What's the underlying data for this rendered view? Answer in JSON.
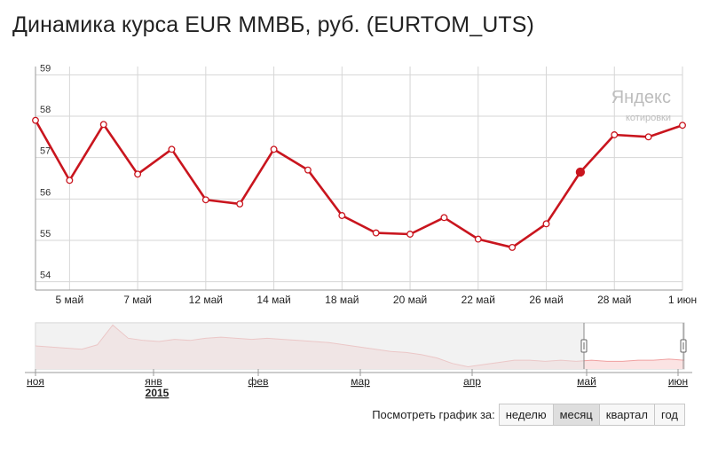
{
  "header": {
    "title": "Динамика курса EUR ММВБ, руб. (EURTOM_UTS)"
  },
  "watermark": {
    "brand": "Яндекс",
    "sub": "котировки"
  },
  "colors": {
    "line": "#c9151e",
    "grid": "#d6d6d6",
    "navigator_fill": "#fbe3e3",
    "navigator_line": "#f0a0a0",
    "navigator_shade": "#e7e7e7"
  },
  "chart_data": {
    "type": "line",
    "title": "Динамика курса EUR ММВБ, руб. (EURTOM_UTS)",
    "xlabel": "",
    "ylabel": "",
    "ylim": [
      53.8,
      59.2
    ],
    "yticks": [
      54,
      55,
      56,
      57,
      58,
      59
    ],
    "grid": true,
    "x": [
      "4 май",
      "5 май",
      "6 май",
      "7 май",
      "8 май",
      "12 май",
      "13 май",
      "14 май",
      "15 май",
      "18 май",
      "19 май",
      "20 май",
      "21 май",
      "22 май",
      "25 май",
      "26 май",
      "27 май",
      "28 май",
      "29 май",
      "1 июн"
    ],
    "values": [
      57.9,
      56.45,
      57.8,
      56.6,
      57.2,
      55.98,
      55.88,
      57.2,
      56.7,
      55.6,
      55.18,
      55.15,
      55.55,
      55.03,
      54.83,
      55.4,
      56.65,
      57.55,
      57.5,
      57.78
    ],
    "xtick_labels": [
      "5 май",
      "7 май",
      "12 май",
      "14 май",
      "18 май",
      "20 май",
      "22 май",
      "26 май",
      "28 май",
      "1 июн"
    ],
    "highlight": "27 май"
  },
  "navigator": {
    "month_labels": [
      "ноя",
      "янв",
      "фев",
      "мар",
      "апр",
      "май",
      "июн"
    ],
    "year_label": "2015",
    "values": [
      71,
      70,
      69,
      68,
      72,
      90,
      78,
      76,
      75,
      77,
      76,
      78,
      79,
      78,
      77,
      78,
      77,
      76,
      75,
      74,
      72,
      70,
      68,
      66,
      65,
      63,
      60,
      55,
      52,
      54,
      56,
      58,
      58,
      57,
      58,
      57,
      58,
      57,
      57,
      58,
      58,
      59,
      58
    ]
  },
  "period_selector": {
    "label": "Посмотреть график за:",
    "options": [
      "неделю",
      "месяц",
      "квартал",
      "год"
    ],
    "selected": "месяц"
  }
}
